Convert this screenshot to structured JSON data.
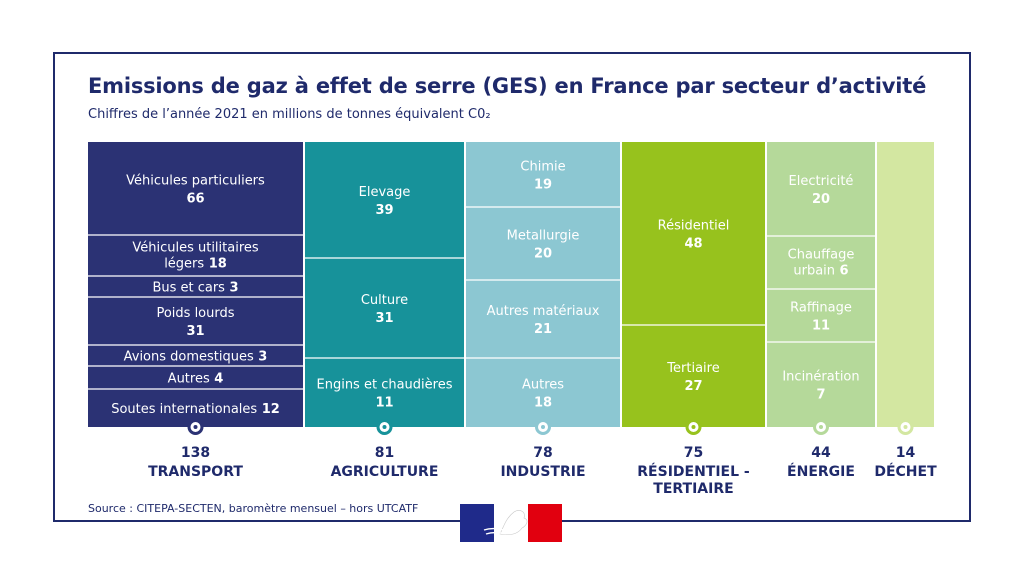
{
  "title": "Emissions de gaz à effet de serre (GES) en France par secteur d’activité",
  "subtitle": "Chiffres de l’année 2021 en millions de tonnes équivalent C0₂",
  "source": "Source : CITEPA-SECTEN, baromètre mensuel – hors UTCATF",
  "chart_data": {
    "type": "treemap",
    "unit": "millions de tonnes équivalent CO2",
    "sectors": [
      {
        "name": "TRANSPORT",
        "total": "138",
        "color": "#2b3274",
        "items": [
          {
            "label": "Véhicules particuliers",
            "value": "66"
          },
          {
            "label": "Véhicules utilitaires légers",
            "value": "18"
          },
          {
            "label": "Bus et cars",
            "value": "3"
          },
          {
            "label": "Poids lourds",
            "value": "31"
          },
          {
            "label": "Avions domestiques",
            "value": "3"
          },
          {
            "label": "Autres",
            "value": "4"
          },
          {
            "label": "Soutes internationales",
            "value": "12"
          }
        ]
      },
      {
        "name": "AGRICULTURE",
        "total": "81",
        "color": "#17929a",
        "items": [
          {
            "label": "Elevage",
            "value": "39"
          },
          {
            "label": "Culture",
            "value": "31"
          },
          {
            "label": "Engins et chaudières",
            "value": "11"
          }
        ]
      },
      {
        "name": "INDUSTRIE",
        "total": "78",
        "color": "#8cc7d2",
        "items": [
          {
            "label": "Chimie",
            "value": "19"
          },
          {
            "label": "Metallurgie",
            "value": "20"
          },
          {
            "label": "Autres matériaux",
            "value": "21"
          },
          {
            "label": "Autres",
            "value": "18"
          }
        ]
      },
      {
        "name": "RÉSIDENTIEL - TERTIAIRE",
        "total": "75",
        "color": "#97c21d",
        "items": [
          {
            "label": "Résidentiel",
            "value": "48"
          },
          {
            "label": "Tertiaire",
            "value": "27"
          }
        ]
      },
      {
        "name": "ÉNERGIE",
        "total": "44",
        "color": "#b5d99a",
        "items": [
          {
            "label": "Electricité",
            "value": "20"
          },
          {
            "label": "Chauffage urbain",
            "value": "6"
          },
          {
            "label": "Raffinage",
            "value": "11"
          },
          {
            "label": "Incinération",
            "value": "7"
          }
        ]
      },
      {
        "name": "DÉCHET",
        "total": "14",
        "color": "#d3e7a1",
        "items": []
      }
    ]
  }
}
